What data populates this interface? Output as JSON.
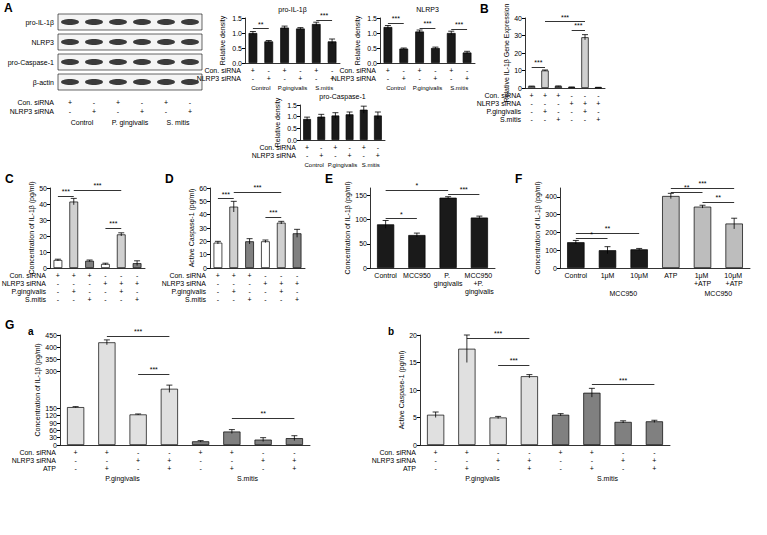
{
  "blot": {
    "panel": "A",
    "proteins": [
      "pro-IL-1β",
      "NLRP3",
      "pro-Caspase-1",
      "β-actin"
    ],
    "condition_rows": [
      {
        "label": "Con. siRNA",
        "marks": [
          "+",
          "-",
          "+",
          "-",
          "+",
          "-"
        ]
      },
      {
        "label": "NLRP3 siRNA",
        "marks": [
          "-",
          "+",
          "-",
          "+",
          "-",
          "+"
        ]
      }
    ],
    "groups": [
      {
        "label": "Control",
        "from": 0,
        "to": 1
      },
      {
        "label": "P. gingivalis",
        "from": 2,
        "to": 3
      },
      {
        "label": "S. mitis",
        "from": 4,
        "to": 5
      }
    ]
  },
  "chart_data": [
    {
      "type": "bar",
      "title": "pro-IL-1β",
      "ylabel": "Relative density",
      "categories": [
        null,
        null,
        null,
        null,
        null,
        null
      ],
      "values": [
        1.0,
        0.72,
        1.18,
        1.15,
        1.3,
        0.72
      ],
      "errors": [
        0.05,
        0.03,
        0.05,
        0.03,
        0.06,
        0.08
      ],
      "colors": [
        "#1a1a1a",
        "#1a1a1a",
        "#1a1a1a",
        "#1a1a1a",
        "#1a1a1a",
        "#1a1a1a"
      ],
      "ylim": [
        0,
        1.5
      ],
      "yticks": [
        {
          "value": 0,
          "label": "0.0"
        },
        0.5,
        {
          "value": 1,
          "label": "1.0"
        },
        1.5
      ],
      "grid": false,
      "condition_rows": [
        {
          "label": "Con. siRNA",
          "marks": [
            "+",
            "-",
            "+",
            "-",
            "+",
            "-"
          ]
        },
        {
          "label": "NLRP3 siRNA",
          "marks": [
            "-",
            "+",
            "-",
            "+",
            "-",
            "+"
          ]
        }
      ],
      "groups": [
        {
          "label": "Control",
          "from": 0,
          "to": 1
        },
        {
          "label": "P.gingivalis",
          "from": 2,
          "to": 3
        },
        {
          "label": "S.mitis",
          "from": 4,
          "to": 5
        }
      ],
      "annotations": [
        {
          "text": "**",
          "from": 0,
          "to": 1,
          "y": 1.15
        },
        {
          "text": "***",
          "from": 4,
          "to": 5,
          "y": 1.42
        }
      ]
    },
    {
      "type": "bar",
      "title": "NLRP3",
      "ylabel": "Relative density",
      "categories": [
        null,
        null,
        null,
        null,
        null,
        null
      ],
      "values": [
        1.2,
        0.48,
        1.05,
        0.5,
        1.0,
        0.35
      ],
      "errors": [
        0.05,
        0.02,
        0.05,
        0.03,
        0.06,
        0.04
      ],
      "colors": [
        "#1a1a1a",
        "#1a1a1a",
        "#1a1a1a",
        "#1a1a1a",
        "#1a1a1a",
        "#1a1a1a"
      ],
      "ylim": [
        0,
        1.5
      ],
      "yticks": [
        {
          "value": 0,
          "label": "0.0"
        },
        0.5,
        {
          "value": 1,
          "label": "1.0"
        },
        1.5
      ],
      "grid": false,
      "condition_rows": [
        {
          "label": "Con. siRNA",
          "marks": [
            "+",
            "-",
            "+",
            "-",
            "+",
            "-"
          ]
        },
        {
          "label": "NLRP3 siRNA",
          "marks": [
            "-",
            "+",
            "-",
            "+",
            "-",
            "+"
          ]
        }
      ],
      "groups": [
        {
          "label": "Control",
          "from": 0,
          "to": 1
        },
        {
          "label": "P.gingivalis",
          "from": 2,
          "to": 3
        },
        {
          "label": "S.mitis",
          "from": 4,
          "to": 5
        }
      ],
      "annotations": [
        {
          "text": "***",
          "from": 0,
          "to": 1,
          "y": 1.32
        },
        {
          "text": "***",
          "from": 2,
          "to": 3,
          "y": 1.17
        },
        {
          "text": "***",
          "from": 4,
          "to": 5,
          "y": 1.12
        }
      ]
    },
    {
      "type": "bar",
      "title": "pro-Caspase-1",
      "ylabel": "Relative density",
      "categories": [
        null,
        null,
        null,
        null,
        null,
        null
      ],
      "values": [
        0.9,
        1.0,
        1.05,
        1.1,
        1.3,
        1.05
      ],
      "errors": [
        0.08,
        0.1,
        0.12,
        0.1,
        0.15,
        0.15
      ],
      "colors": [
        "#1a1a1a",
        "#1a1a1a",
        "#1a1a1a",
        "#1a1a1a",
        "#1a1a1a",
        "#1a1a1a"
      ],
      "ylim": [
        0,
        1.5
      ],
      "yticks": [
        {
          "value": 0,
          "label": "0.0"
        },
        0.5,
        {
          "value": 1,
          "label": "1.0"
        },
        1.5
      ],
      "grid": false,
      "condition_rows": [
        {
          "label": "Con. siRNA",
          "marks": [
            "+",
            "-",
            "+",
            "-",
            "+",
            "-"
          ]
        },
        {
          "label": "NLRP3 siRNA",
          "marks": [
            "-",
            "+",
            "-",
            "+",
            "-",
            "+"
          ]
        }
      ],
      "groups": [
        {
          "label": "Control",
          "from": 0,
          "to": 1
        },
        {
          "label": "P.gingivalis",
          "from": 2,
          "to": 3
        },
        {
          "label": "S.mitis",
          "from": 4,
          "to": 5
        }
      ]
    },
    {
      "type": "bar",
      "panel": "B",
      "ylabel": "Relative IL-1β Gene Expression",
      "categories": [
        null,
        null,
        null,
        null,
        null,
        null
      ],
      "values": [
        1,
        10,
        1,
        0.5,
        29,
        0.3
      ],
      "errors": [
        0.1,
        0.3,
        0.2,
        0.1,
        1.5,
        0.1
      ],
      "colors": [
        "#ffffff",
        "#d0d0d0",
        "#808080",
        "#ffffff",
        "#d0d0d0",
        "#808080"
      ],
      "ylim": [
        0,
        40
      ],
      "yticks": [
        0,
        10,
        20,
        30,
        40
      ],
      "grid": false,
      "condition_rows": [
        {
          "label": "Con. siRNA",
          "marks": [
            "+",
            "+",
            "+",
            "-",
            "-",
            "-"
          ]
        },
        {
          "label": "NLRP3 siRNA",
          "marks": [
            "-",
            "-",
            "-",
            "+",
            "+",
            "+"
          ]
        },
        {
          "label": "P.gingivalis",
          "marks": [
            "-",
            "+",
            "-",
            "-",
            "+",
            "-"
          ]
        },
        {
          "label": "S.mitis",
          "marks": [
            "-",
            "-",
            "+",
            "-",
            "-",
            "+"
          ]
        }
      ],
      "annotations": [
        {
          "text": "***",
          "from": 0,
          "to": 1,
          "y": 12
        },
        {
          "text": "***",
          "from": 1,
          "to": 4,
          "y": 38
        },
        {
          "text": "***",
          "from": 3,
          "to": 4,
          "y": 33
        }
      ]
    },
    {
      "type": "bar",
      "panel": "C",
      "ylabel": "Concentration of IL-1β (pg/ml)",
      "categories": [
        null,
        null,
        null,
        null,
        null,
        null
      ],
      "values": [
        5,
        41.5,
        4.5,
        2.5,
        21,
        3
      ],
      "errors": [
        0.5,
        2,
        0.5,
        0.5,
        1,
        1.5
      ],
      "colors": [
        "#ffffff",
        "#d0d0d0",
        "#808080",
        "#ffffff",
        "#d0d0d0",
        "#808080"
      ],
      "ylim": [
        0,
        50
      ],
      "yticks": [
        0,
        10,
        20,
        30,
        40,
        50
      ],
      "grid": false,
      "condition_rows": [
        {
          "label": "Con. siRNA",
          "marks": [
            "+",
            "+",
            "+",
            "-",
            "-",
            "-"
          ]
        },
        {
          "label": "NLRP3 siRNA",
          "marks": [
            "-",
            "-",
            "-",
            "+",
            "+",
            "+"
          ]
        },
        {
          "label": "P.gingivalis",
          "marks": [
            "-",
            "+",
            "-",
            "-",
            "+",
            "-"
          ]
        },
        {
          "label": "S.mitis",
          "marks": [
            "-",
            "-",
            "+",
            "-",
            "-",
            "+"
          ]
        }
      ],
      "annotations": [
        {
          "text": "***",
          "from": 0,
          "to": 1,
          "y": 45
        },
        {
          "text": "***",
          "from": 1,
          "to": 4,
          "y": 48.5
        },
        {
          "text": "***",
          "from": 3,
          "to": 4,
          "y": 25
        }
      ]
    },
    {
      "type": "bar",
      "panel": "D",
      "ylabel": "Active Caspase-1 (pg/ml)",
      "categories": [
        null,
        null,
        null,
        null,
        null,
        null
      ],
      "values": [
        19,
        46,
        20,
        20,
        34,
        26
      ],
      "errors": [
        1,
        4,
        2,
        1,
        1,
        3
      ],
      "colors": [
        "#ffffff",
        "#d0d0d0",
        "#808080",
        "#ffffff",
        "#d0d0d0",
        "#808080"
      ],
      "ylim": [
        0,
        60
      ],
      "yticks": [
        0,
        10,
        20,
        30,
        40,
        50,
        60
      ],
      "grid": false,
      "condition_rows": [
        {
          "label": "Con. siRNA",
          "marks": [
            "+",
            "+",
            "+",
            "-",
            "-",
            "-"
          ]
        },
        {
          "label": "NLRP3 siRNA",
          "marks": [
            "-",
            "-",
            "-",
            "+",
            "+",
            "+"
          ]
        },
        {
          "label": "P.gingivalis",
          "marks": [
            "-",
            "+",
            "-",
            "-",
            "+",
            "-"
          ]
        },
        {
          "label": "S.mitis",
          "marks": [
            "-",
            "-",
            "+",
            "-",
            "-",
            "+"
          ]
        }
      ],
      "annotations": [
        {
          "text": "***",
          "from": 0,
          "to": 1,
          "y": 52
        },
        {
          "text": "***",
          "from": 1,
          "to": 4,
          "y": 57
        },
        {
          "text": "***",
          "from": 3,
          "to": 4,
          "y": 38
        }
      ]
    },
    {
      "type": "bar",
      "panel": "E",
      "ylabel": "Concentration of IL-1β (pg/ml)",
      "categories": [
        "Control",
        "MCC950",
        "P. gingivalis",
        "MCC950 +P. gingivalis"
      ],
      "values": [
        90,
        68,
        145,
        104
      ],
      "errors": [
        8,
        4,
        2,
        3
      ],
      "colors": [
        "#1a1a1a",
        "#1a1a1a",
        "#1a1a1a",
        "#1a1a1a"
      ],
      "ylim": [
        0,
        165
      ],
      "yticks": [
        0,
        50,
        100,
        150
      ],
      "grid": false,
      "annotations": [
        {
          "text": "*",
          "from": 0,
          "to": 1,
          "y": 102
        },
        {
          "text": "*",
          "from": 0,
          "to": 2,
          "y": 160
        },
        {
          "text": "***",
          "from": 2,
          "to": 3,
          "y": 152
        }
      ]
    },
    {
      "type": "bar",
      "panel": "F",
      "ylabel": "Concentration of IL-1β (pg/ml)",
      "categories": [
        "Control",
        "1μM",
        "10μM",
        "ATP",
        "1μM +ATP",
        "10μM +ATP"
      ],
      "values": [
        145,
        100,
        105,
        405,
        345,
        250
      ],
      "errors": [
        10,
        20,
        5,
        15,
        8,
        30
      ],
      "colors": [
        "#1a1a1a",
        "#1a1a1a",
        "#1a1a1a",
        "#bdbdbd",
        "#bdbdbd",
        "#bdbdbd"
      ],
      "ylim": [
        0,
        450
      ],
      "yticks": [
        0,
        100,
        200,
        300,
        400
      ],
      "grid": false,
      "groups": [
        {
          "label": "MCC950",
          "from": 1,
          "to": 2
        },
        {
          "label": "MCC950",
          "from": 4,
          "to": 5
        }
      ],
      "annotations": [
        {
          "text": "*",
          "from": 0,
          "to": 1,
          "y": 165
        },
        {
          "text": "**",
          "from": 0,
          "to": 2,
          "y": 195
        },
        {
          "text": "**",
          "from": 3,
          "to": 4,
          "y": 425
        },
        {
          "text": "**",
          "from": 4,
          "to": 5,
          "y": 370
        },
        {
          "text": "***",
          "from": 3,
          "to": 5,
          "y": 448
        }
      ]
    },
    {
      "type": "bar",
      "panel": "G",
      "subpanel": "a",
      "ylabel": "Concentration of IL-1β (pg/ml)",
      "categories": [
        null,
        null,
        null,
        null,
        null,
        null,
        null,
        null
      ],
      "values": [
        155,
        420,
        125,
        230,
        15,
        55,
        22,
        28
      ],
      "errors": [
        2,
        10,
        2,
        15,
        3,
        8,
        8,
        10
      ],
      "colors": [
        "#e0e0e0",
        "#e0e0e0",
        "#e0e0e0",
        "#e0e0e0",
        "#808080",
        "#808080",
        "#808080",
        "#808080"
      ],
      "ylim": [
        0,
        450
      ],
      "yticks": [
        0,
        30,
        60,
        90,
        120,
        150,
        300,
        350,
        400,
        450
      ],
      "grid": false,
      "condition_rows": [
        {
          "label": "Con. siRNA",
          "marks": [
            "+",
            "+",
            "-",
            "-",
            "+",
            "+",
            "-",
            "-"
          ]
        },
        {
          "label": "NLRP3 siRNA",
          "marks": [
            "-",
            "-",
            "+",
            "+",
            "-",
            "-",
            "+",
            "+"
          ]
        },
        {
          "label": "ATP",
          "marks": [
            "-",
            "+",
            "-",
            "+",
            "-",
            "+",
            "-",
            "+"
          ]
        }
      ],
      "groups": [
        {
          "label": "P.gingivalis",
          "from": 0,
          "to": 3
        },
        {
          "label": "S.mitis",
          "from": 4,
          "to": 7
        }
      ],
      "annotations": [
        {
          "text": "***",
          "from": 1,
          "to": 3,
          "y": 445
        },
        {
          "text": "***",
          "from": 2,
          "to": 3,
          "y": 290
        },
        {
          "text": "**",
          "from": 5,
          "to": 7,
          "y": 110
        }
      ]
    },
    {
      "type": "bar",
      "subpanel": "b",
      "ylabel": "Active Caspase-1 (pg/ml)",
      "categories": [
        null,
        null,
        null,
        null,
        null,
        null,
        null,
        null
      ],
      "values": [
        5.5,
        17.5,
        5,
        12.5,
        5.5,
        9.5,
        4.2,
        4.3
      ],
      "errors": [
        0.5,
        2.5,
        0.2,
        0.3,
        0.2,
        0.8,
        0.2,
        0.2
      ],
      "colors": [
        "#e0e0e0",
        "#e0e0e0",
        "#e0e0e0",
        "#e0e0e0",
        "#808080",
        "#808080",
        "#808080",
        "#808080"
      ],
      "ylim": [
        0,
        20
      ],
      "yticks": [
        0,
        5,
        10,
        15,
        20
      ],
      "grid": false,
      "condition_rows": [
        {
          "label": "Con. siRNA",
          "marks": [
            "+",
            "+",
            "-",
            "-",
            "+",
            "+",
            "-",
            "-"
          ]
        },
        {
          "label": "NLRP3 siRNA",
          "marks": [
            "-",
            "-",
            "+",
            "+",
            "-",
            "-",
            "+",
            "+"
          ]
        },
        {
          "label": "ATP",
          "marks": [
            "-",
            "+",
            "-",
            "+",
            "-",
            "+",
            "-",
            "+"
          ]
        }
      ],
      "groups": [
        {
          "label": "P.gingivalis",
          "from": 0,
          "to": 3
        },
        {
          "label": "S.mitis",
          "from": 4,
          "to": 7
        }
      ],
      "annotations": [
        {
          "text": "***",
          "from": 1,
          "to": 3,
          "y": 19.5
        },
        {
          "text": "***",
          "from": 2,
          "to": 3,
          "y": 14.5
        },
        {
          "text": "***",
          "from": 5,
          "to": 7,
          "y": 11
        }
      ]
    }
  ]
}
